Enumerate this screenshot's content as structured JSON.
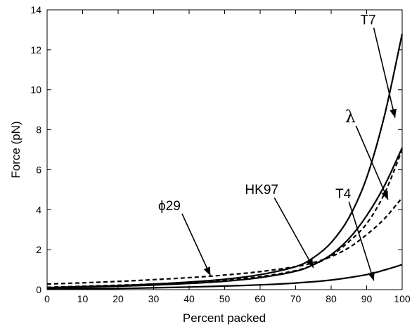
{
  "chart_data": {
    "type": "line",
    "title": "",
    "xlabel": "Percent packed",
    "ylabel": "Force (pN)",
    "xlim": [
      0,
      100
    ],
    "ylim": [
      0,
      14
    ],
    "xticks": [
      0,
      10,
      20,
      30,
      40,
      50,
      60,
      70,
      80,
      90,
      100
    ],
    "yticks": [
      0,
      2,
      4,
      6,
      8,
      10,
      12,
      14
    ],
    "grid": false,
    "legend": "none",
    "series": [
      {
        "name": "T7",
        "style": "solid",
        "x": [
          0,
          10,
          20,
          30,
          40,
          50,
          60,
          70,
          75,
          80,
          85,
          90,
          95,
          100
        ],
        "y": [
          0.1,
          0.15,
          0.2,
          0.28,
          0.38,
          0.52,
          0.75,
          1.15,
          1.6,
          2.35,
          3.6,
          5.6,
          8.7,
          12.8
        ]
      },
      {
        "name": "λ",
        "style": "solid",
        "x": [
          0,
          10,
          20,
          30,
          40,
          50,
          60,
          70,
          75,
          80,
          85,
          90,
          95,
          100
        ],
        "y": [
          0.08,
          0.12,
          0.17,
          0.23,
          0.31,
          0.42,
          0.6,
          0.92,
          1.25,
          1.75,
          2.55,
          3.7,
          5.2,
          7.1
        ]
      },
      {
        "name": "HK97",
        "style": "dashed",
        "x": [
          0,
          10,
          20,
          30,
          40,
          50,
          60,
          70,
          75,
          80,
          85,
          90,
          95,
          100
        ],
        "y": [
          0.12,
          0.17,
          0.22,
          0.28,
          0.37,
          0.48,
          0.65,
          0.95,
          1.25,
          1.7,
          2.4,
          3.3,
          4.8,
          7.0
        ]
      },
      {
        "name": "ϕ29",
        "style": "dashed",
        "x": [
          0,
          10,
          20,
          30,
          40,
          50,
          60,
          70,
          75,
          80,
          85,
          90,
          95,
          100
        ],
        "y": [
          0.28,
          0.34,
          0.41,
          0.5,
          0.6,
          0.73,
          0.9,
          1.15,
          1.35,
          1.65,
          2.1,
          2.75,
          3.55,
          4.6
        ]
      },
      {
        "name": "T4",
        "style": "solid",
        "x": [
          0,
          10,
          20,
          30,
          40,
          50,
          60,
          70,
          80,
          90,
          95,
          100
        ],
        "y": [
          0.02,
          0.04,
          0.06,
          0.09,
          0.13,
          0.18,
          0.24,
          0.33,
          0.48,
          0.75,
          0.98,
          1.25
        ]
      }
    ],
    "annotations": [
      {
        "text": "T7",
        "tail": [
          92,
          13.1
        ],
        "head": [
          98,
          8.6
        ]
      },
      {
        "text": "λ",
        "tail": [
          87,
          8.2
        ],
        "head": [
          96,
          4.5
        ]
      },
      {
        "text": "HK97",
        "tail": [
          64,
          4.6
        ],
        "head": [
          75,
          1.1
        ]
      },
      {
        "text": "T4",
        "tail": [
          85,
          4.4
        ],
        "head": [
          92,
          0.45
        ]
      },
      {
        "text": "ϕ29",
        "tail": [
          38,
          3.8
        ],
        "head": [
          46,
          0.7
        ]
      }
    ]
  }
}
